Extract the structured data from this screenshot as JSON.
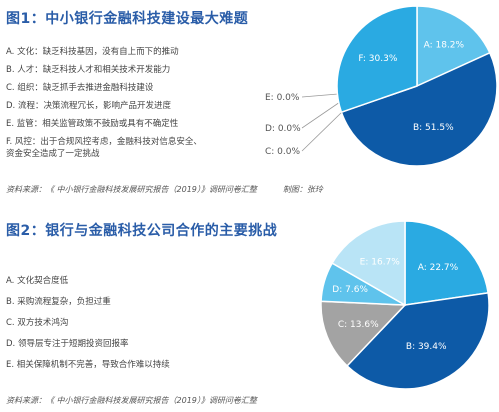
{
  "figures": [
    {
      "title": "图1：中小银行金融科技建设最大难题",
      "items": [
        "A. 文化：缺乏科技基因，没有自上而下的推动",
        "B. 人才：缺乏科技人才和相关技术开发能力",
        "C. 组织：缺乏抓手去推进金融科技建设",
        "D. 流程：决策流程冗长，影响产品开发进度",
        "E. 监管：相关监管政策不鼓励或具有不确定性",
        "F. 风控：出于合规风控考虑，金融科技对信息安全、\n资金安全造成了一定挑战"
      ],
      "source": "资料来源：《 中小银行金融科技发展研究报告（2019）》调研问卷汇整",
      "credit": "制图：张玲"
    },
    {
      "title": "图2：银行与金融科技公司合作的主要挑战",
      "items": [
        "A. 文化契合度低",
        "B. 采购流程复杂，负担过重",
        "C. 双方技术鸿沟",
        "D. 领导层专注于短期投资回报率",
        "E. 相关保障机制不完善，导致合作难以持续"
      ],
      "source": "资料来源：《 中小银行金融科技发展研究报告（2019）》调研问卷汇整",
      "credit": ""
    }
  ],
  "chart_data": [
    {
      "type": "pie",
      "title": "图1：中小银行金融科技建设最大难题",
      "slices": [
        {
          "label": "A",
          "value": 18.2,
          "text": "A: 18.2%",
          "color": "#5fc3ec"
        },
        {
          "label": "B",
          "value": 51.5,
          "text": "B: 51.5%",
          "color": "#0d5aa7"
        },
        {
          "label": "C",
          "value": 0.0,
          "text": "C: 0.0%",
          "color": "#999999"
        },
        {
          "label": "D",
          "value": 0.0,
          "text": "D: 0.0%",
          "color": "#5fc3ec"
        },
        {
          "label": "E",
          "value": 0.0,
          "text": "E: 0.0%",
          "color": "#b9e4f6"
        },
        {
          "label": "F",
          "value": 30.3,
          "text": "F: 30.3%",
          "color": "#2aaae2"
        }
      ]
    },
    {
      "type": "pie",
      "title": "图2：银行与金融科技公司合作的主要挑战",
      "slices": [
        {
          "label": "A",
          "value": 22.7,
          "text": "A: 22.7%",
          "color": "#2aaae2"
        },
        {
          "label": "B",
          "value": 39.4,
          "text": "B: 39.4%",
          "color": "#0d5aa7"
        },
        {
          "label": "C",
          "value": 13.6,
          "text": "C: 13.6%",
          "color": "#a3a3a3"
        },
        {
          "label": "D",
          "value": 7.6,
          "text": "D: 7.6%",
          "color": "#5fc3ec"
        },
        {
          "label": "E",
          "value": 16.7,
          "text": "E: 16.7%",
          "color": "#b9e4f6"
        }
      ]
    }
  ]
}
